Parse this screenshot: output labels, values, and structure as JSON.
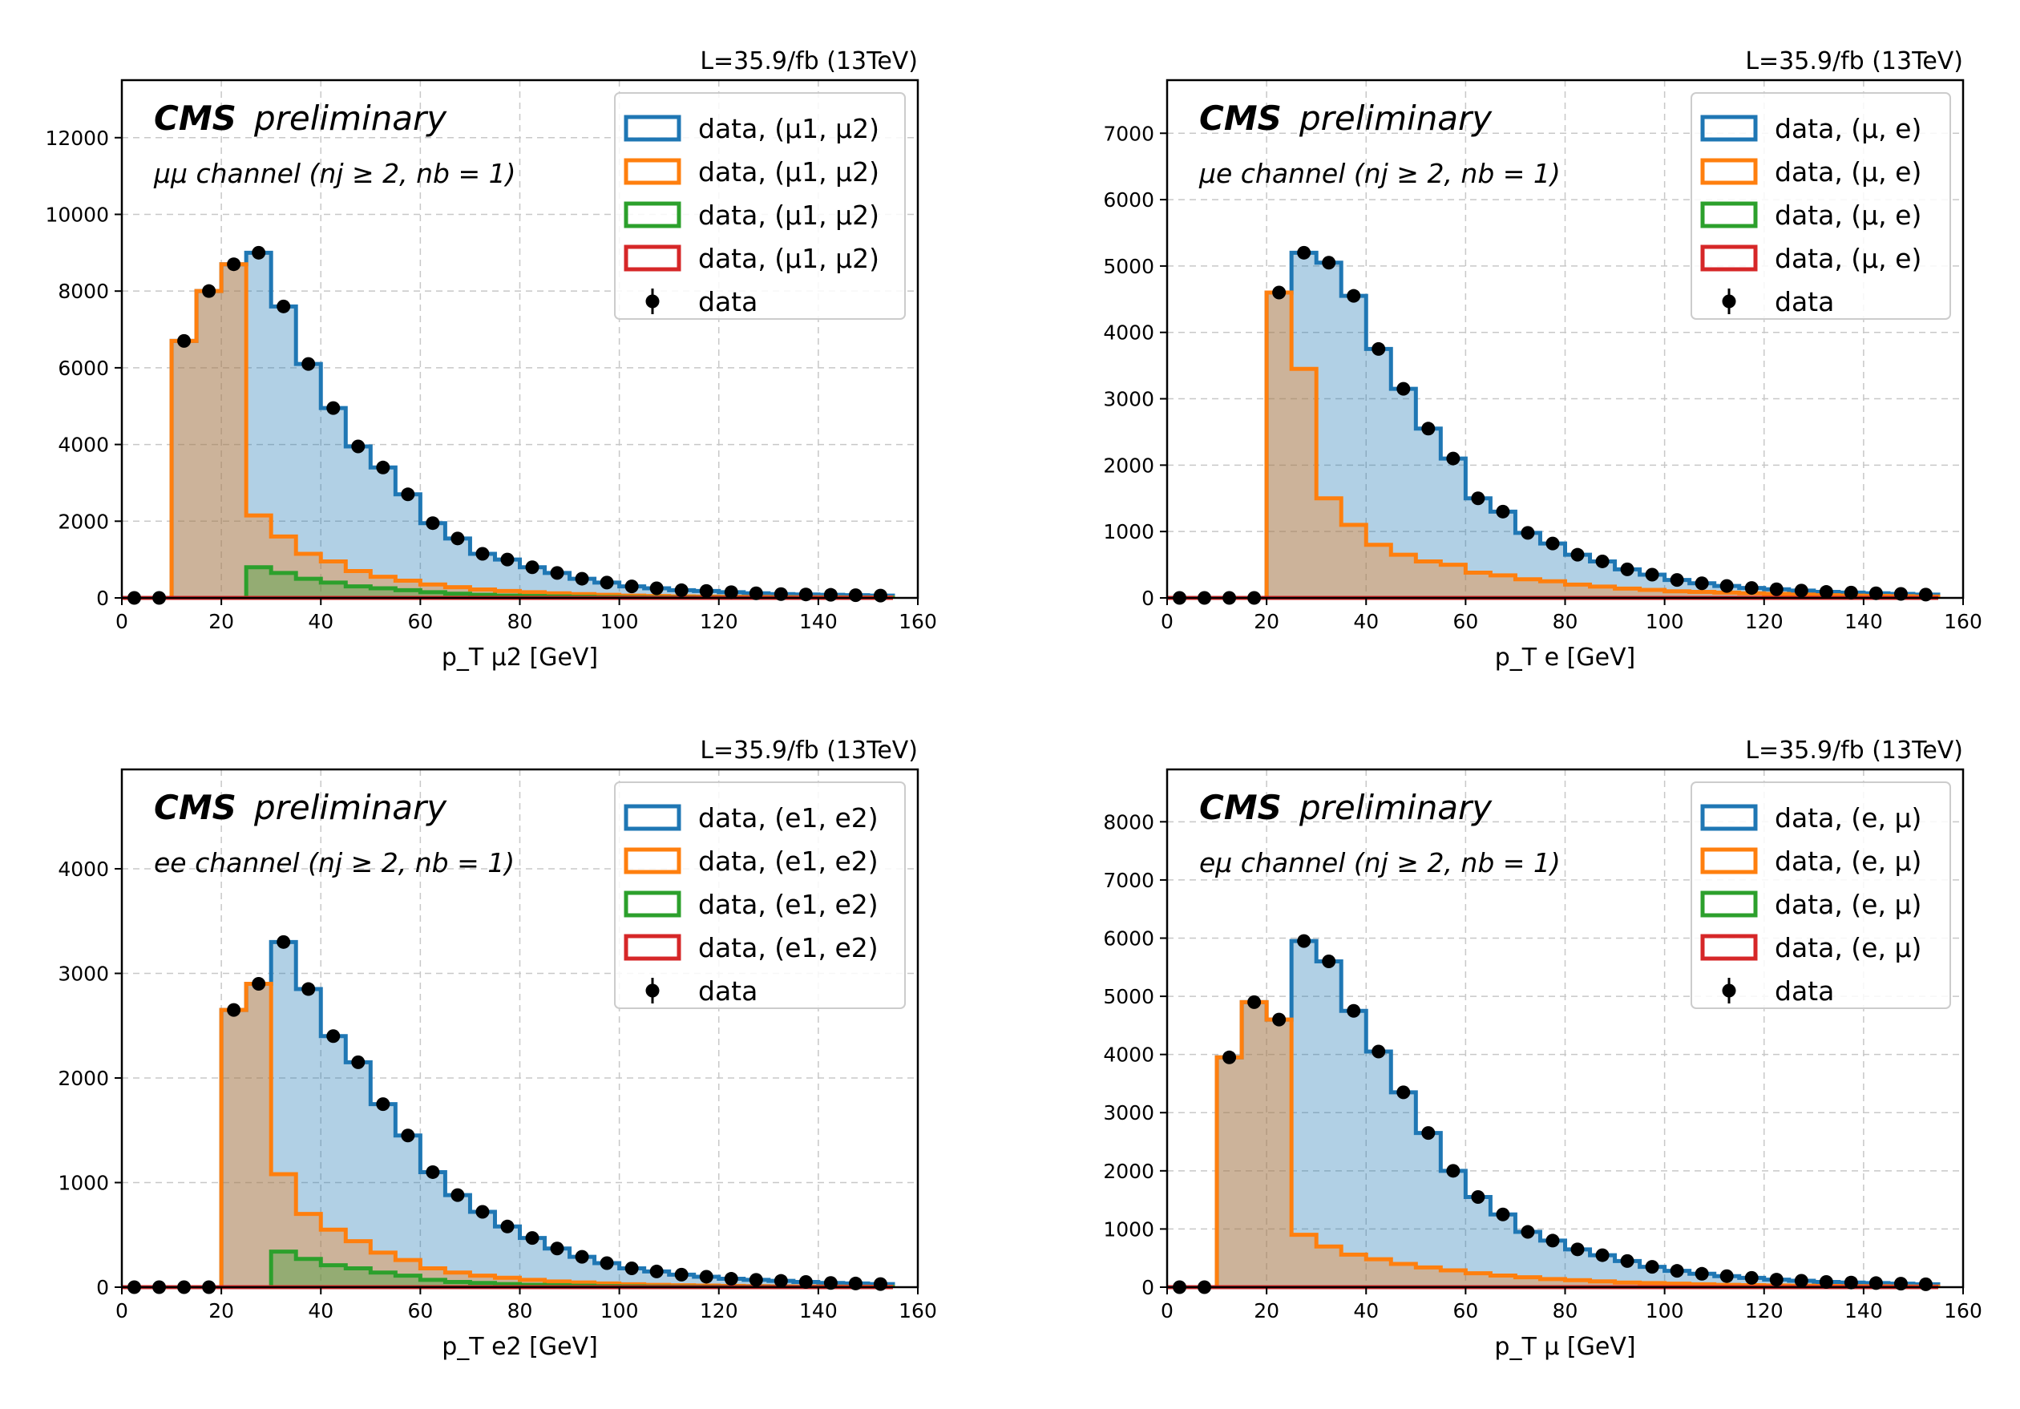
{
  "colors": {
    "blue": "#1f77b4",
    "orange": "#ff7f0e",
    "green": "#2ca02c",
    "red": "#d62728",
    "data": "#000000"
  },
  "chart_data": [
    {
      "type": "bar",
      "lumi": "L=35.9/fb (13TeV)",
      "cms_bold": "CMS",
      "cms_italic": "preliminary",
      "channel": "μμ channel (nj ≥ 2, nb = 1)",
      "xlabel": "p_T μ2 [GeV]",
      "xlim": [
        0,
        160
      ],
      "ylim": [
        0,
        13500
      ],
      "xticks": [
        "0",
        "20",
        "40",
        "60",
        "80",
        "100",
        "120",
        "140",
        "160"
      ],
      "yticks": [
        "0",
        "2000",
        "4000",
        "6000",
        "8000",
        "10000",
        "12000"
      ],
      "grid": true,
      "legend_position": "top-right",
      "legend": [
        "data, (μ1, μ2)",
        "data, (μ1, μ2)",
        "data, (μ1, μ2)",
        "data, (μ1, μ2)",
        "data"
      ],
      "bin_edges": [
        0,
        5,
        10,
        15,
        20,
        25,
        30,
        35,
        40,
        45,
        50,
        55,
        60,
        65,
        70,
        75,
        80,
        85,
        90,
        95,
        100,
        105,
        110,
        115,
        120,
        125,
        130,
        135,
        140,
        145,
        150,
        155
      ],
      "series": [
        {
          "values": [
            0,
            0,
            6700,
            8000,
            8700,
            9000,
            7600,
            6100,
            4950,
            3950,
            3400,
            2700,
            1950,
            1550,
            1150,
            1000,
            800,
            650,
            500,
            400,
            300,
            250,
            200,
            180,
            150,
            120,
            100,
            90,
            80,
            70,
            60
          ]
        },
        {
          "values": [
            0,
            0,
            6700,
            8000,
            8700,
            2150,
            1600,
            1150,
            950,
            700,
            550,
            450,
            350,
            280,
            220,
            180,
            150,
            120,
            100,
            80,
            60,
            50,
            40,
            35,
            30,
            25,
            20,
            18,
            15,
            12,
            10
          ]
        },
        {
          "values": [
            0,
            0,
            0,
            0,
            0,
            800,
            650,
            500,
            400,
            300,
            250,
            200,
            150,
            110,
            80,
            60,
            50,
            40,
            30,
            20,
            15,
            12,
            10,
            8,
            6,
            5,
            4,
            3,
            2,
            2,
            1
          ]
        },
        {
          "values": [
            0,
            0,
            0,
            0,
            0,
            0,
            0,
            0,
            0,
            0,
            0,
            0,
            0,
            0,
            0,
            0,
            0,
            0,
            0,
            0,
            0,
            0,
            0,
            0,
            0,
            0,
            0,
            0,
            0,
            0,
            0
          ]
        },
        {
          "values": [
            0,
            0,
            6700,
            8000,
            8700,
            9000,
            7600,
            6100,
            4950,
            3950,
            3400,
            2700,
            1950,
            1550,
            1150,
            1000,
            800,
            650,
            500,
            400,
            300,
            250,
            200,
            180,
            150,
            120,
            100,
            90,
            80,
            70,
            60
          ]
        }
      ]
    },
    {
      "type": "bar",
      "lumi": "L=35.9/fb (13TeV)",
      "cms_bold": "CMS",
      "cms_italic": "preliminary",
      "channel": "μe channel (nj ≥ 2, nb = 1)",
      "xlabel": "p_T e [GeV]",
      "xlim": [
        0,
        160
      ],
      "ylim": [
        0,
        7800
      ],
      "xticks": [
        "0",
        "20",
        "40",
        "60",
        "80",
        "100",
        "120",
        "140",
        "160"
      ],
      "yticks": [
        "0",
        "1000",
        "2000",
        "3000",
        "4000",
        "5000",
        "6000",
        "7000"
      ],
      "grid": true,
      "legend_position": "top-right",
      "legend": [
        "data, (μ, e)",
        "data, (μ, e)",
        "data, (μ, e)",
        "data, (μ, e)",
        "data"
      ],
      "bin_edges": [
        0,
        5,
        10,
        15,
        20,
        25,
        30,
        35,
        40,
        45,
        50,
        55,
        60,
        65,
        70,
        75,
        80,
        85,
        90,
        95,
        100,
        105,
        110,
        115,
        120,
        125,
        130,
        135,
        140,
        145,
        150,
        155
      ],
      "series": [
        {
          "values": [
            0,
            0,
            0,
            0,
            4600,
            5200,
            5050,
            4550,
            3750,
            3150,
            2550,
            2100,
            1500,
            1300,
            980,
            820,
            650,
            550,
            430,
            350,
            270,
            220,
            180,
            150,
            130,
            110,
            90,
            80,
            70,
            60,
            50
          ]
        },
        {
          "values": [
            0,
            0,
            0,
            0,
            4600,
            3450,
            1500,
            1100,
            800,
            650,
            550,
            500,
            380,
            340,
            280,
            250,
            200,
            170,
            140,
            120,
            100,
            90,
            80,
            70,
            60,
            50,
            40,
            35,
            30,
            25,
            20
          ]
        },
        {
          "values": [
            0,
            0,
            0,
            0,
            0,
            0,
            0,
            0,
            0,
            0,
            0,
            0,
            0,
            0,
            0,
            0,
            0,
            0,
            0,
            0,
            0,
            0,
            0,
            0,
            0,
            0,
            0,
            0,
            0,
            0,
            0
          ]
        },
        {
          "values": [
            0,
            0,
            0,
            0,
            0,
            0,
            0,
            0,
            0,
            0,
            0,
            0,
            0,
            0,
            0,
            0,
            0,
            0,
            0,
            0,
            0,
            0,
            0,
            0,
            0,
            0,
            0,
            0,
            0,
            0,
            0
          ]
        },
        {
          "values": [
            0,
            0,
            0,
            0,
            4600,
            5200,
            5050,
            4550,
            3750,
            3150,
            2550,
            2100,
            1500,
            1300,
            980,
            820,
            650,
            550,
            430,
            350,
            270,
            220,
            180,
            150,
            130,
            110,
            90,
            80,
            70,
            60,
            50
          ]
        }
      ]
    },
    {
      "type": "bar",
      "lumi": "L=35.9/fb (13TeV)",
      "cms_bold": "CMS",
      "cms_italic": "preliminary",
      "channel": "ee channel (nj ≥ 2, nb = 1)",
      "xlabel": "p_T e2 [GeV]",
      "xlim": [
        0,
        160
      ],
      "ylim": [
        0,
        4950
      ],
      "xticks": [
        "0",
        "20",
        "40",
        "60",
        "80",
        "100",
        "120",
        "140",
        "160"
      ],
      "yticks": [
        "0",
        "1000",
        "2000",
        "3000",
        "4000"
      ],
      "grid": true,
      "legend_position": "top-right",
      "legend": [
        "data, (e1, e2)",
        "data, (e1, e2)",
        "data, (e1, e2)",
        "data, (e1, e2)",
        "data"
      ],
      "bin_edges": [
        0,
        5,
        10,
        15,
        20,
        25,
        30,
        35,
        40,
        45,
        50,
        55,
        60,
        65,
        70,
        75,
        80,
        85,
        90,
        95,
        100,
        105,
        110,
        115,
        120,
        125,
        130,
        135,
        140,
        145,
        150,
        155
      ],
      "series": [
        {
          "values": [
            0,
            0,
            0,
            0,
            2650,
            2900,
            3300,
            2850,
            2400,
            2150,
            1750,
            1450,
            1100,
            880,
            720,
            580,
            470,
            370,
            290,
            230,
            180,
            150,
            120,
            100,
            80,
            70,
            60,
            50,
            40,
            35,
            30
          ]
        },
        {
          "values": [
            0,
            0,
            0,
            0,
            2650,
            2900,
            1080,
            700,
            550,
            440,
            330,
            260,
            180,
            140,
            110,
            90,
            70,
            55,
            45,
            35,
            28,
            22,
            18,
            15,
            12,
            10,
            8,
            7,
            6,
            5,
            4
          ]
        },
        {
          "values": [
            0,
            0,
            0,
            0,
            0,
            0,
            340,
            270,
            210,
            180,
            140,
            110,
            70,
            50,
            40,
            30,
            22,
            18,
            14,
            10,
            8,
            6,
            5,
            4,
            3,
            3,
            2,
            2,
            1,
            1,
            1
          ]
        },
        {
          "values": [
            0,
            0,
            0,
            0,
            0,
            0,
            0,
            0,
            0,
            0,
            0,
            0,
            0,
            0,
            0,
            0,
            0,
            0,
            0,
            0,
            0,
            0,
            0,
            0,
            0,
            0,
            0,
            0,
            0,
            0,
            0
          ]
        },
        {
          "values": [
            0,
            0,
            0,
            0,
            2650,
            2900,
            3300,
            2850,
            2400,
            2150,
            1750,
            1450,
            1100,
            880,
            720,
            580,
            470,
            370,
            290,
            230,
            180,
            150,
            120,
            100,
            80,
            70,
            60,
            50,
            40,
            35,
            30
          ]
        }
      ]
    },
    {
      "type": "bar",
      "lumi": "L=35.9/fb (13TeV)",
      "cms_bold": "CMS",
      "cms_italic": "preliminary",
      "channel": "eμ channel (nj ≥ 2, nb = 1)",
      "xlabel": "p_T μ [GeV]",
      "xlim": [
        0,
        160
      ],
      "ylim": [
        0,
        8900
      ],
      "xticks": [
        "0",
        "20",
        "40",
        "60",
        "80",
        "100",
        "120",
        "140",
        "160"
      ],
      "yticks": [
        "0",
        "1000",
        "2000",
        "3000",
        "4000",
        "5000",
        "6000",
        "7000",
        "8000"
      ],
      "grid": true,
      "legend_position": "top-right",
      "legend": [
        "data, (e, μ)",
        "data, (e, μ)",
        "data, (e, μ)",
        "data, (e, μ)",
        "data"
      ],
      "bin_edges": [
        0,
        5,
        10,
        15,
        20,
        25,
        30,
        35,
        40,
        45,
        50,
        55,
        60,
        65,
        70,
        75,
        80,
        85,
        90,
        95,
        100,
        105,
        110,
        115,
        120,
        125,
        130,
        135,
        140,
        145,
        150,
        155
      ],
      "series": [
        {
          "values": [
            0,
            0,
            3950,
            4900,
            4600,
            5950,
            5600,
            4750,
            4050,
            3350,
            2650,
            2000,
            1550,
            1250,
            950,
            800,
            650,
            550,
            450,
            350,
            280,
            230,
            190,
            160,
            130,
            110,
            90,
            80,
            70,
            60,
            50
          ]
        },
        {
          "values": [
            0,
            0,
            3950,
            4900,
            4600,
            900,
            700,
            560,
            480,
            400,
            340,
            290,
            240,
            200,
            170,
            140,
            120,
            100,
            80,
            70,
            60,
            50,
            40,
            35,
            30,
            25,
            20,
            18,
            15,
            12,
            10
          ]
        },
        {
          "values": [
            0,
            0,
            0,
            0,
            0,
            0,
            0,
            0,
            0,
            0,
            0,
            0,
            0,
            0,
            0,
            0,
            0,
            0,
            0,
            0,
            0,
            0,
            0,
            0,
            0,
            0,
            0,
            0,
            0,
            0,
            0
          ]
        },
        {
          "values": [
            0,
            0,
            0,
            0,
            0,
            0,
            0,
            0,
            0,
            0,
            0,
            0,
            0,
            0,
            0,
            0,
            0,
            0,
            0,
            0,
            0,
            0,
            0,
            0,
            0,
            0,
            0,
            0,
            0,
            0,
            0
          ]
        },
        {
          "values": [
            0,
            0,
            3950,
            4900,
            4600,
            5950,
            5600,
            4750,
            4050,
            3350,
            2650,
            2000,
            1550,
            1250,
            950,
            800,
            650,
            550,
            450,
            350,
            280,
            230,
            190,
            160,
            130,
            110,
            90,
            80,
            70,
            60,
            50
          ]
        }
      ]
    }
  ]
}
